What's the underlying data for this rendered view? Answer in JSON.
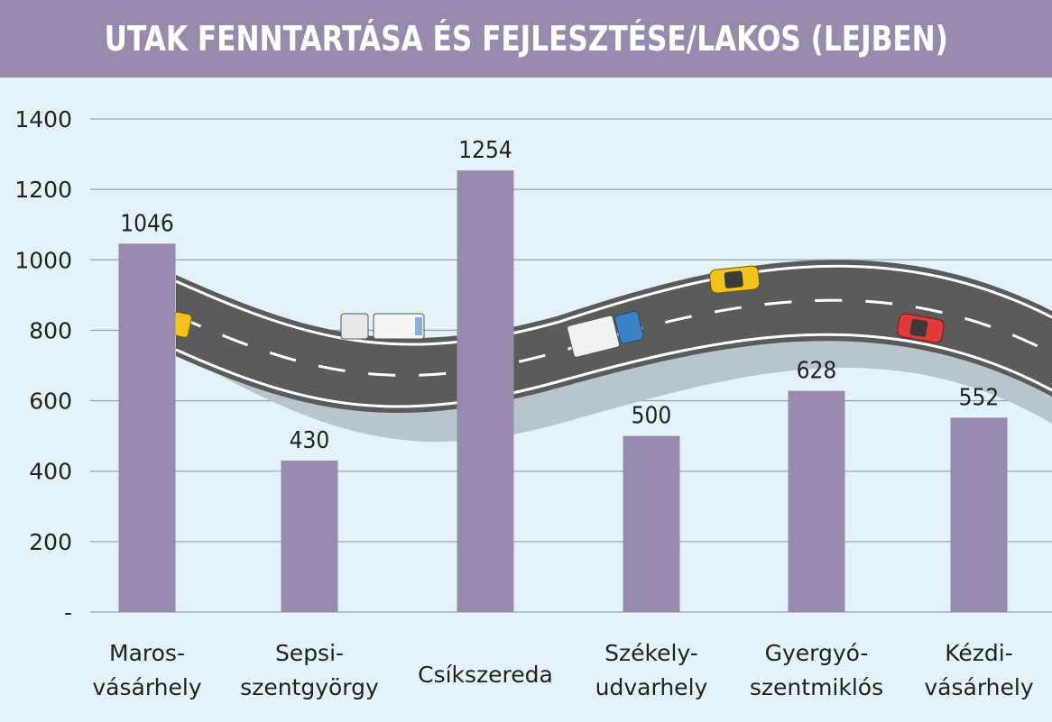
{
  "title": "UTAK FENNTARTÁSA ÉS FEJLESZTÉSE/LAKOS (LEJBEN)",
  "colors": {
    "title_bar": "#978aad",
    "background": "#e4f3fa",
    "bar": "#978aad",
    "grid": "#9aa6ad",
    "road": "#5b5b5b",
    "road_shadow": "#b9c5cc"
  },
  "chart_data": {
    "type": "bar",
    "title": "UTAK FENNTARTÁSA ÉS FEJLESZTÉSE/LAKOS (LEJBEN)",
    "categories": [
      [
        "Maros-",
        "vásárhely"
      ],
      [
        "Sepsi-",
        "szentgyörgy"
      ],
      [
        "Csíkszereda"
      ],
      [
        "Székely-",
        "udvarhely"
      ],
      [
        "Gyergyó-",
        "szentmiklós"
      ],
      [
        "Kézdi-",
        "vásárhely"
      ]
    ],
    "values": [
      1046,
      430,
      1254,
      500,
      628,
      552
    ],
    "value_labels": [
      "1046",
      "430",
      "1254",
      "500",
      "628",
      "552"
    ],
    "ylim": [
      0,
      1400
    ],
    "yticks": [
      {
        "value": 0,
        "label": "-"
      },
      {
        "value": 200,
        "label": "200"
      },
      {
        "value": 400,
        "label": "400"
      },
      {
        "value": 600,
        "label": "600"
      },
      {
        "value": 800,
        "label": "800"
      },
      {
        "value": 1000,
        "label": "1000"
      },
      {
        "value": 1200,
        "label": "1200"
      },
      {
        "value": 1400,
        "label": "1400"
      }
    ],
    "grid": true,
    "xlabel": "",
    "ylabel": "",
    "decoration": {
      "road": true,
      "vehicles": [
        "yellow-taxi",
        "white-truck",
        "blue-truck",
        "yellow-taxi",
        "red-car"
      ]
    }
  }
}
